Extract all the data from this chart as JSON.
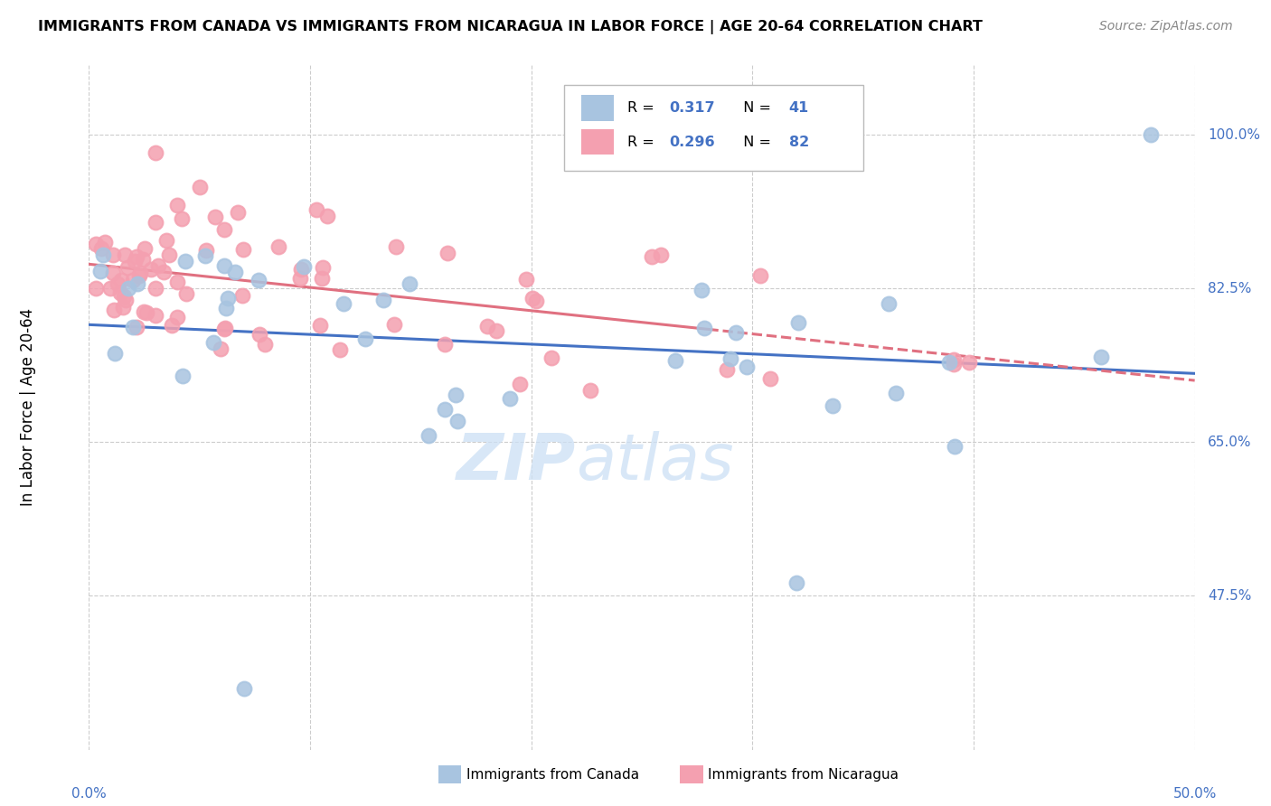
{
  "title": "IMMIGRANTS FROM CANADA VS IMMIGRANTS FROM NICARAGUA IN LABOR FORCE | AGE 20-64 CORRELATION CHART",
  "source": "Source: ZipAtlas.com",
  "ylabel": "In Labor Force | Age 20-64",
  "ytick_labels": [
    "100.0%",
    "82.5%",
    "65.0%",
    "47.5%"
  ],
  "ytick_values": [
    1.0,
    0.825,
    0.65,
    0.475
  ],
  "xlim": [
    0.0,
    0.5
  ],
  "ylim": [
    0.3,
    1.08
  ],
  "watermark_zip": "ZIP",
  "watermark_atlas": "atlas",
  "legend_R_canada": "0.317",
  "legend_N_canada": "41",
  "legend_R_nicaragua": "0.296",
  "legend_N_nicaragua": "82",
  "canada_color": "#a8c4e0",
  "nicaragua_color": "#f4a0b0",
  "canada_line_color": "#4472c4",
  "nicaragua_line_color": "#e07080",
  "text_blue": "#4472c4",
  "grid_color": "#cccccc",
  "xtick_vals": [
    0.0,
    0.1,
    0.2,
    0.3,
    0.4,
    0.5
  ]
}
